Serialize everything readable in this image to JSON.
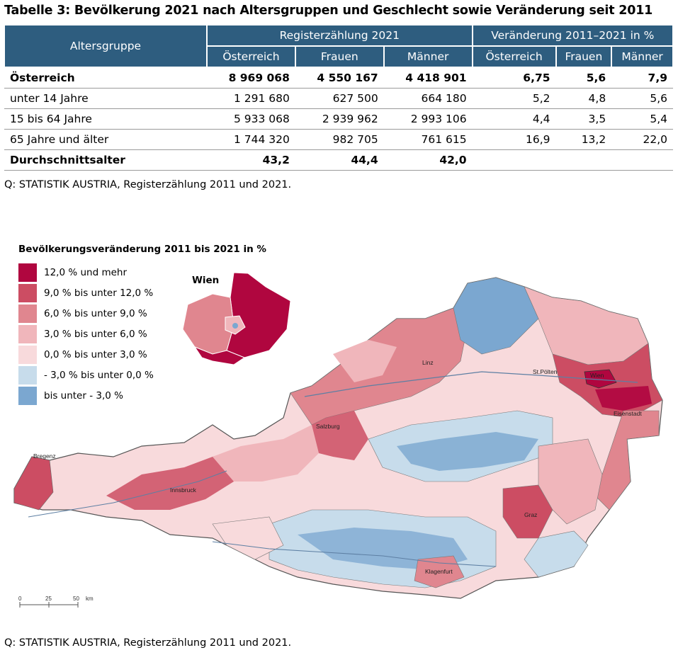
{
  "title": "Tabelle 3: Bevölkerung 2021 nach Altersgruppen und Geschlecht sowie Veränderung seit 2011",
  "table": {
    "col_group_label": "Altersgruppe",
    "group1": "Registerzählung 2021",
    "group2": "Veränderung 2011–2021 in %",
    "subheaders": [
      "Österreich",
      "Frauen",
      "Männer",
      "Österreich",
      "Frauen",
      "Männer"
    ],
    "rows": [
      {
        "label": "Österreich",
        "values": [
          "8 969 068",
          "4 550 167",
          "4 418 901",
          "6,75",
          "5,6",
          "7,9"
        ]
      },
      {
        "label": "unter 14 Jahre",
        "values": [
          "1 291 680",
          "627 500",
          "664 180",
          "5,2",
          "4,8",
          "5,6"
        ]
      },
      {
        "label": "15 bis 64 Jahre",
        "values": [
          "5 933 068",
          "2 939 962",
          "2 993 106",
          "4,4",
          "3,5",
          "5,4"
        ]
      },
      {
        "label": "65 Jahre und älter",
        "values": [
          "1 744 320",
          "982 705",
          "761 615",
          "16,9",
          "13,2",
          "22,0"
        ]
      },
      {
        "label": "Durchschnittsalter",
        "values": [
          "43,2",
          "44,4",
          "42,0",
          "",
          "",
          ""
        ]
      }
    ]
  },
  "source1": "Q: STATISTIK AUSTRIA, Registerzählung 2011 und 2021.",
  "map": {
    "legend_title": "Bevölkerungsveränderung 2011 bis 2021 in %",
    "legend": [
      {
        "label": "12,0 % und mehr",
        "color": "#b0063f"
      },
      {
        "label": "9,0 % bis unter 12,0 %",
        "color": "#cc4d63"
      },
      {
        "label": "6,0 % bis unter 9,0 %",
        "color": "#e0868f"
      },
      {
        "label": "3,0 % bis unter 6,0 %",
        "color": "#f0b6bb"
      },
      {
        "label": "0,0 % bis unter 3,0 %",
        "color": "#f8dadc"
      },
      {
        "label": "- 3,0 % bis unter 0,0 %",
        "color": "#c7dceb"
      },
      {
        "label": "bis unter - 3,0 %",
        "color": "#7ba7d0"
      }
    ],
    "inset_title": "Wien",
    "cities": [
      "Linz",
      "St.Pölten",
      "Wien",
      "Eisenstadt",
      "Salzburg",
      "Bregenz",
      "Innsbruck",
      "Graz",
      "Klagenfurt"
    ],
    "scale": {
      "ticks": [
        "0",
        "25",
        "50"
      ],
      "unit": "km"
    }
  },
  "source2": "Q: STATISTIK AUSTRIA, Registerzählung 2011 und 2021."
}
